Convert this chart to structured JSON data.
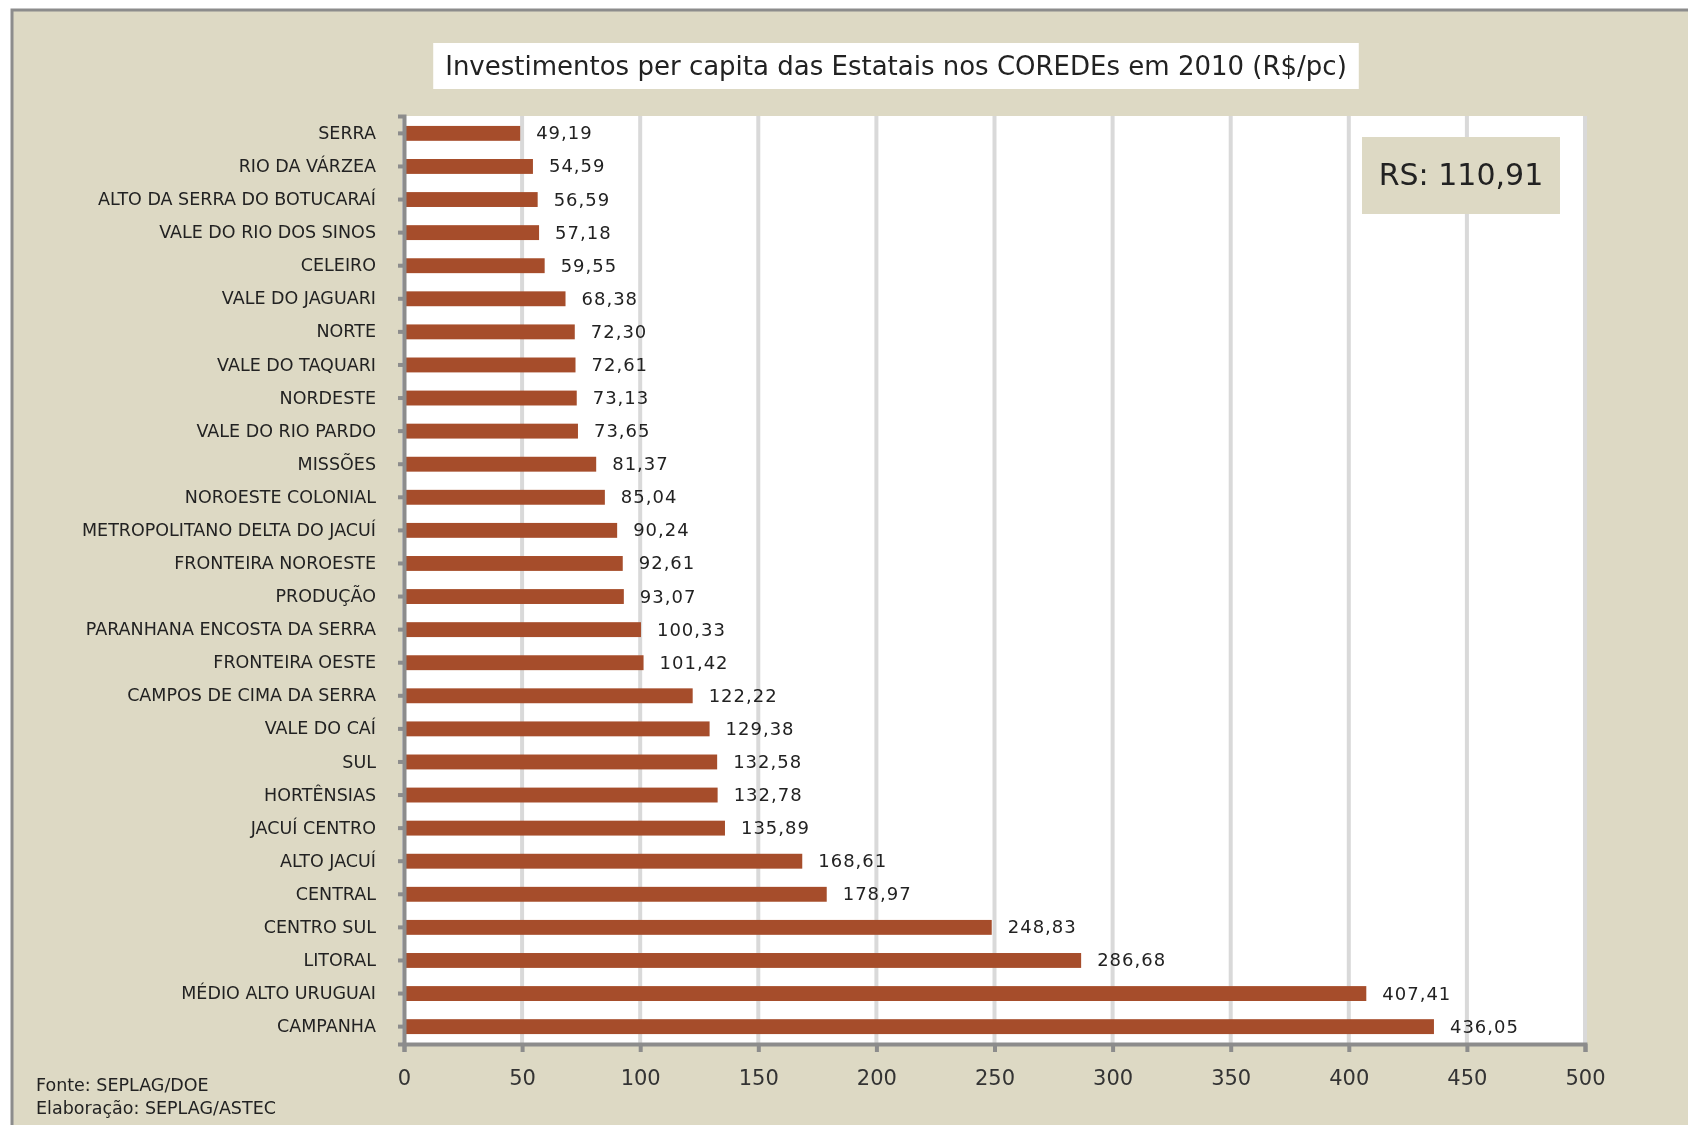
{
  "chart_data": {
    "type": "bar",
    "orientation": "horizontal",
    "title": "Investimentos per capita das Estatais  nos COREDEs em 2010 (R$/pc)",
    "categories": [
      "SERRA",
      "RIO DA VÁRZEA",
      "ALTO DA SERRA  DO BOTUCARAÍ",
      "VALE DO RIO DOS SINOS",
      "CELEIRO",
      "VALE DO JAGUARI",
      "NORTE",
      "VALE DO TAQUARI",
      "NORDESTE",
      "VALE DO RIO PARDO",
      "MISSÕES",
      "NOROESTE  COLONIAL",
      "METROPOLITANO  DELTA DO JACUÍ",
      "FRONTEIRA  NOROESTE",
      "PRODUÇÃO",
      "PARANHANA ENCOSTA  DA SERRA",
      "FRONTEIRA  OESTE",
      "CAMPOS DE CIMA DA SERRA",
      "VALE DO CAÍ",
      "SUL",
      "HORTÊNSIAS",
      "JACUÍ CENTRO",
      "ALTO JACUÍ",
      "CENTRAL",
      "CENTRO SUL",
      "LITORAL",
      "MÉDIO ALTO  URUGUAI",
      "CAMPANHA"
    ],
    "values": [
      49.19,
      54.59,
      56.59,
      57.18,
      59.55,
      68.38,
      72.3,
      72.61,
      73.13,
      73.65,
      81.37,
      85.04,
      90.24,
      92.61,
      93.07,
      100.33,
      101.42,
      122.22,
      129.38,
      132.58,
      132.78,
      135.89,
      168.61,
      178.97,
      248.83,
      286.68,
      407.41,
      436.05
    ],
    "value_labels": [
      "49,19",
      "54,59",
      "56,59",
      "57,18",
      "59,55",
      "68,38",
      "72,30",
      "72,61",
      "73,13",
      "73,65",
      "81,37",
      "85,04",
      "90,24",
      "92,61",
      "93,07",
      "100,33",
      "101,42",
      "122,22",
      "129,38",
      "132,58",
      "132,78",
      "135,89",
      "168,61",
      "178,97",
      "248,83",
      "286,68",
      "407,41",
      "436,05"
    ],
    "color": "#a64d2b",
    "xlim": [
      0,
      500
    ],
    "xticks": [
      0,
      50,
      100,
      150,
      200,
      250,
      300,
      350,
      400,
      450,
      500
    ],
    "grid": "x",
    "annotations": [
      "RS: 110,91",
      "Fonte:  SEPLAG/DOE",
      "Elaboração:  SEPLAG/ASTEC"
    ]
  }
}
